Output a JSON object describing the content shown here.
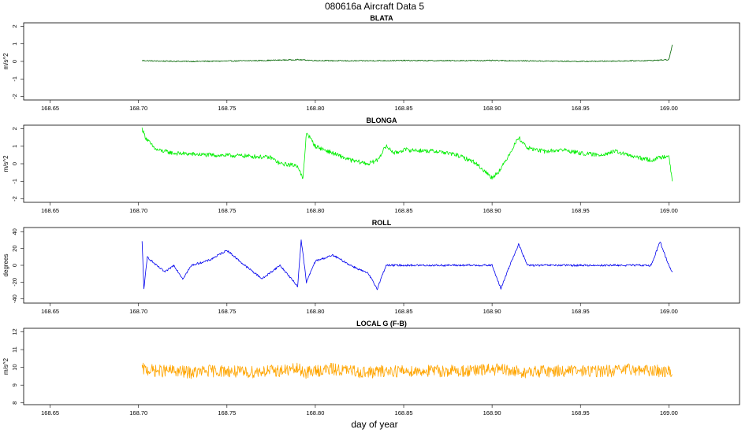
{
  "figure": {
    "title": "080616a   Aircraft Data 5",
    "xlabel": "day of year"
  },
  "chart_data": [
    {
      "type": "line",
      "title": "BLATA",
      "ylabel": "m/s^2",
      "color": "#006400",
      "xlim": [
        168.635,
        169.04
      ],
      "ylim": [
        -2.2,
        2.2
      ],
      "xticks": [
        168.65,
        168.7,
        168.75,
        168.8,
        168.85,
        168.9,
        168.95,
        169.0
      ],
      "xtick_labels": [
        "168.65",
        "168.70",
        "168.75",
        "168.80",
        "168.85",
        "168.90",
        "168.95",
        "169.00"
      ],
      "yticks": [
        -2,
        -1,
        0,
        1,
        2
      ],
      "ytick_labels": [
        "-2",
        "-1",
        "0",
        "1",
        "2"
      ],
      "series": [
        {
          "x": [
            168.702,
            168.71,
            168.73,
            168.75,
            168.77,
            168.79,
            168.8,
            168.82,
            168.85,
            168.87,
            168.9,
            168.92,
            168.95,
            168.97,
            168.99,
            169.0,
            169.002
          ],
          "y": [
            0.05,
            0.02,
            0.0,
            0.02,
            0.05,
            0.1,
            0.05,
            0.03,
            0.05,
            0.04,
            0.05,
            0.03,
            0.0,
            0.02,
            0.05,
            0.1,
            0.95
          ]
        }
      ]
    },
    {
      "type": "line",
      "title": "BLONGA",
      "ylabel": "m/s^2",
      "color": "#00ee00",
      "xlim": [
        168.635,
        169.04
      ],
      "ylim": [
        -2.2,
        2.2
      ],
      "xticks": [
        168.65,
        168.7,
        168.75,
        168.8,
        168.85,
        168.9,
        168.95,
        169.0
      ],
      "xtick_labels": [
        "168.65",
        "168.70",
        "168.75",
        "168.80",
        "168.85",
        "168.90",
        "168.95",
        "169.00"
      ],
      "yticks": [
        -2,
        -1,
        0,
        1,
        2
      ],
      "ytick_labels": [
        "-2",
        "-1",
        "0",
        "1",
        "2"
      ],
      "series": [
        {
          "x": [
            168.702,
            168.704,
            168.707,
            168.71,
            168.72,
            168.74,
            168.76,
            168.775,
            168.78,
            168.79,
            168.793,
            168.795,
            168.8,
            168.81,
            168.82,
            168.83,
            168.835,
            168.84,
            168.845,
            168.85,
            168.87,
            168.88,
            168.89,
            168.9,
            168.905,
            168.91,
            168.915,
            168.92,
            168.93,
            168.94,
            168.95,
            168.96,
            168.97,
            168.98,
            168.99,
            169.0,
            169.002
          ],
          "y": [
            2.0,
            1.5,
            1.1,
            0.8,
            0.6,
            0.5,
            0.45,
            0.35,
            0.0,
            -0.1,
            -0.9,
            1.8,
            1.0,
            0.6,
            0.2,
            0.0,
            0.2,
            1.0,
            0.6,
            0.8,
            0.7,
            0.5,
            0.1,
            -0.8,
            -0.3,
            0.6,
            1.5,
            0.9,
            0.7,
            0.8,
            0.6,
            0.5,
            0.7,
            0.4,
            0.2,
            0.5,
            -1.0
          ]
        }
      ]
    },
    {
      "type": "line",
      "title": "ROLL",
      "ylabel": "degrees",
      "color": "#0000ee",
      "xlim": [
        168.635,
        169.04
      ],
      "ylim": [
        -45,
        45
      ],
      "xticks": [
        168.65,
        168.7,
        168.75,
        168.8,
        168.85,
        168.9,
        168.95,
        169.0
      ],
      "xtick_labels": [
        "168.65",
        "168.70",
        "168.75",
        "168.80",
        "168.85",
        "168.90",
        "168.95",
        "169.00"
      ],
      "yticks": [
        -40,
        -20,
        0,
        20,
        40
      ],
      "ytick_labels": [
        "-40",
        "-20",
        "0",
        "20",
        "40"
      ],
      "series": [
        {
          "x": [
            168.702,
            168.703,
            168.705,
            168.71,
            168.715,
            168.72,
            168.725,
            168.73,
            168.74,
            168.75,
            168.76,
            168.77,
            168.78,
            168.79,
            168.792,
            168.795,
            168.8,
            168.81,
            168.82,
            168.83,
            168.835,
            168.84,
            168.85,
            168.87,
            168.9,
            168.905,
            168.91,
            168.915,
            168.92,
            168.93,
            168.95,
            168.97,
            168.99,
            168.995,
            169.0,
            169.002
          ],
          "y": [
            28,
            -28,
            10,
            0,
            -8,
            0,
            -16,
            0,
            6,
            18,
            0,
            -16,
            0,
            -25,
            30,
            -20,
            5,
            12,
            0,
            -10,
            -28,
            0,
            0,
            0,
            0,
            -28,
            0,
            25,
            0,
            0,
            0,
            0,
            0,
            28,
            0,
            -8
          ]
        }
      ]
    },
    {
      "type": "line",
      "title": "LOCAL G (F-B)",
      "ylabel": "m/s^2",
      "color": "#ffa500",
      "xlim": [
        168.635,
        169.04
      ],
      "ylim": [
        7.9,
        12.2
      ],
      "xticks": [
        168.65,
        168.7,
        168.75,
        168.8,
        168.85,
        168.9,
        168.95,
        169.0
      ],
      "xtick_labels": [
        "168.65",
        "168.70",
        "168.75",
        "168.80",
        "168.85",
        "168.90",
        "168.95",
        "169.00"
      ],
      "yticks": [
        8,
        9,
        10,
        11,
        12
      ],
      "ytick_labels": [
        "8",
        "9",
        "10",
        "11",
        "12"
      ],
      "series": [
        {
          "x": [
            168.702,
            168.71,
            168.72,
            168.73,
            168.74,
            168.75,
            168.76,
            168.77,
            168.78,
            168.79,
            168.795,
            168.8,
            168.81,
            168.82,
            168.83,
            168.84,
            168.85,
            168.87,
            168.89,
            168.9,
            168.91,
            168.92,
            168.93,
            168.95,
            168.97,
            168.98,
            168.99,
            169.0,
            169.002
          ],
          "y": [
            9.9,
            9.8,
            9.8,
            9.7,
            9.8,
            9.8,
            9.7,
            9.8,
            9.8,
            9.9,
            9.7,
            9.8,
            9.9,
            9.8,
            9.7,
            9.8,
            9.8,
            9.8,
            9.8,
            9.9,
            9.8,
            9.7,
            9.8,
            9.8,
            9.8,
            9.9,
            9.8,
            9.8,
            9.6
          ]
        }
      ]
    }
  ]
}
